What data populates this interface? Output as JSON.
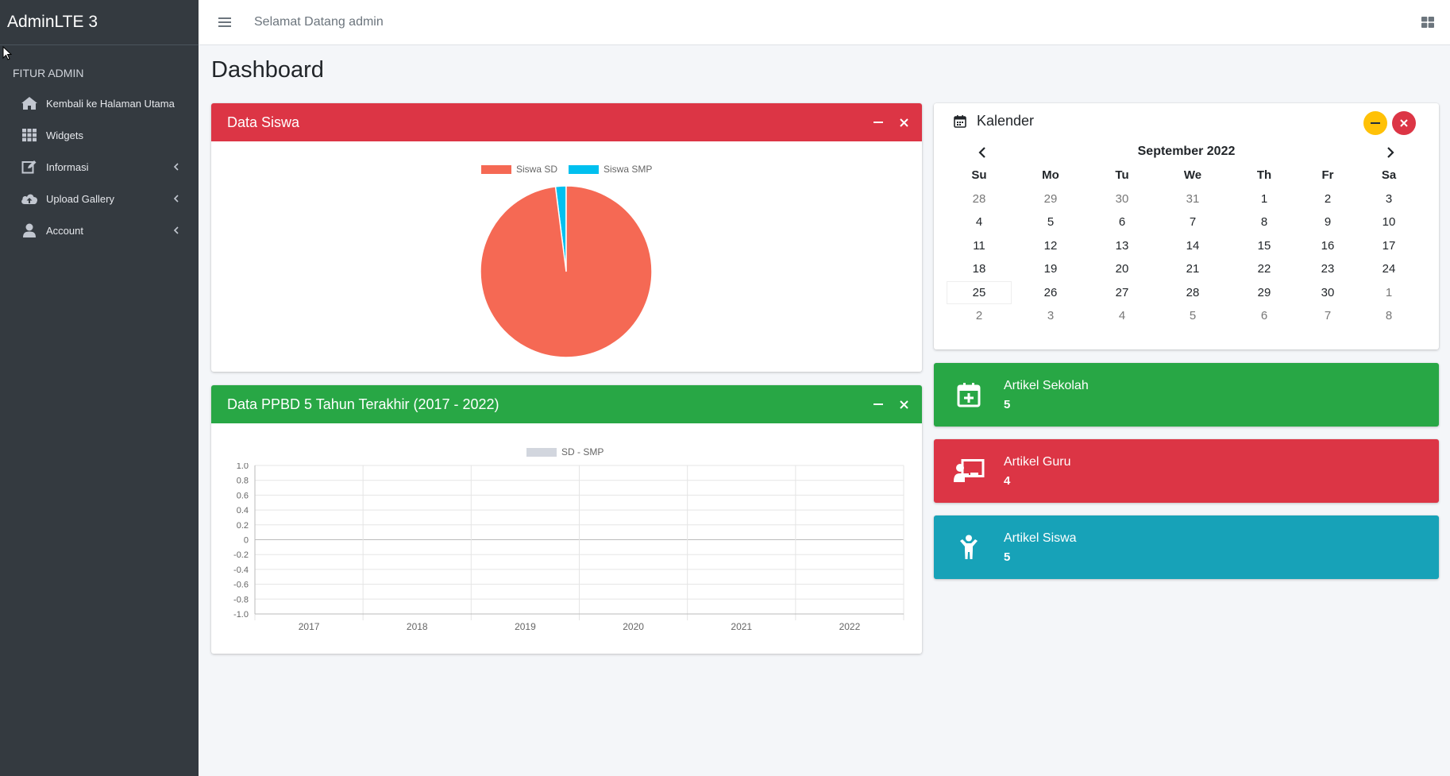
{
  "brand": "AdminLTE 3",
  "topbar": {
    "welcome": "Selamat Datang admin"
  },
  "sidebar": {
    "header": "FITUR ADMIN",
    "items": [
      {
        "label": "Kembali ke Halaman Utama",
        "icon": "home-icon",
        "has_children": false
      },
      {
        "label": "Widgets",
        "icon": "th-grid-icon",
        "has_children": false
      },
      {
        "label": "Informasi",
        "icon": "edit-icon",
        "has_children": true
      },
      {
        "label": "Upload Gallery",
        "icon": "cloud-upload-icon",
        "has_children": true
      },
      {
        "label": "Account",
        "icon": "user-icon",
        "has_children": true
      }
    ]
  },
  "page_title": "Dashboard",
  "colors": {
    "danger": "#dc3545",
    "success": "#28a745",
    "info": "#17a2b8",
    "warning": "#ffc107",
    "pie_sd": "#f56954",
    "pie_smp": "#00c0ef"
  },
  "data_siswa": {
    "title": "Data Siswa",
    "chart_data": {
      "type": "pie",
      "title": "",
      "labels": [
        "Siswa SD",
        "Siswa SMP"
      ],
      "values": [
        98,
        2
      ],
      "legend": "top"
    }
  },
  "data_ppbd": {
    "title": "Data PPBD 5 Tahun Terakhir (2017 - 2022)",
    "chart_data": {
      "type": "bar",
      "title": "",
      "categories": [
        "2017",
        "2018",
        "2019",
        "2020",
        "2021",
        "2022"
      ],
      "series": [
        {
          "name": "SD - SMP",
          "values": [
            0,
            0,
            0,
            0,
            0,
            0
          ]
        }
      ],
      "ylim": [
        -1.0,
        1.0
      ],
      "yticks": [
        "1.0",
        "0.8",
        "0.6",
        "0.4",
        "0.2",
        "0",
        "-0.2",
        "-0.4",
        "-0.6",
        "-0.8",
        "-1.0"
      ],
      "grid": true,
      "legend": "top"
    }
  },
  "calendar": {
    "title": "Kalender",
    "month": "September 2022",
    "dow": [
      "Su",
      "Mo",
      "Tu",
      "We",
      "Th",
      "Fr",
      "Sa"
    ],
    "weeks": [
      [
        "28",
        "29",
        "30",
        "31",
        "1",
        "2",
        "3"
      ],
      [
        "4",
        "5",
        "6",
        "7",
        "8",
        "9",
        "10"
      ],
      [
        "11",
        "12",
        "13",
        "14",
        "15",
        "16",
        "17"
      ],
      [
        "18",
        "19",
        "20",
        "21",
        "22",
        "23",
        "24"
      ],
      [
        "25",
        "26",
        "27",
        "28",
        "29",
        "30",
        "1"
      ],
      [
        "2",
        "3",
        "4",
        "5",
        "6",
        "7",
        "8"
      ]
    ],
    "today": "25"
  },
  "info_boxes": [
    {
      "title": "Artikel Sekolah",
      "count": "5",
      "icon": "calendar-plus-icon"
    },
    {
      "title": "Artikel Guru",
      "count": "4",
      "icon": "chalkboard-teacher-icon"
    },
    {
      "title": "Artikel Siswa",
      "count": "5",
      "icon": "child-icon"
    }
  ]
}
